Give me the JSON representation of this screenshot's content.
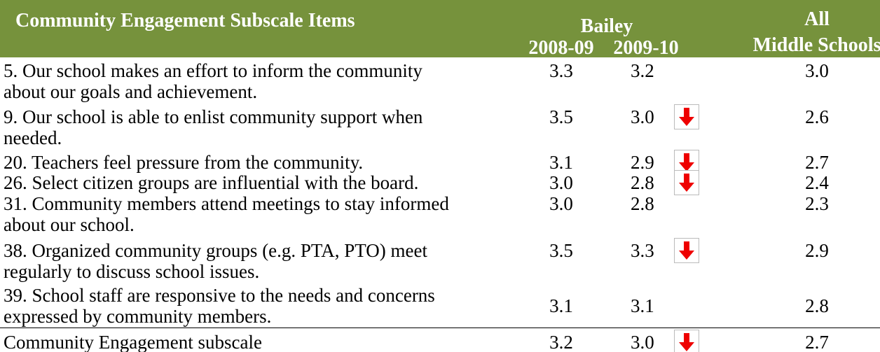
{
  "header": {
    "title": "Community Engagement Subscale Items",
    "school": "Bailey",
    "year1": "2008-09",
    "year2": "2009-10",
    "comparison": [
      "All",
      "Middle Schools"
    ]
  },
  "table": {
    "rows": [
      {
        "item": [
          "5. Our school makes an effort to inform the community",
          "about our goals and achievement."
        ],
        "y1": "3.3",
        "y2": "3.2",
        "all": "3.0",
        "decline": false
      },
      {
        "item": [
          "9. Our school is able to enlist community support when",
          "needed."
        ],
        "y1": "3.5",
        "y2": "3.0",
        "all": "2.6",
        "decline": true
      },
      {
        "item": [
          "20. Teachers feel pressure from the community."
        ],
        "y1": "3.1",
        "y2": "2.9",
        "all": "2.7",
        "decline": true
      },
      {
        "item": [
          "26. Select citizen groups are influential with the board."
        ],
        "y1": "3.0",
        "y2": "2.8",
        "all": "2.4",
        "decline": true
      },
      {
        "item": [
          "31. Community members attend meetings to stay informed",
          "about our school."
        ],
        "y1": "3.0",
        "y2": "2.8",
        "all": "2.3",
        "decline": false
      },
      {
        "item": [
          "38. Organized community groups (e.g. PTA, PTO) meet",
          "regularly to discuss school issues."
        ],
        "y1": "3.5",
        "y2": "3.3",
        "all": "2.9",
        "decline": true
      },
      {
        "item": [
          "39. School staff are responsive to the needs and concerns",
          "expressed by community members."
        ],
        "y1": "3.1",
        "y2": "3.1",
        "all": "2.8",
        "decline": false
      }
    ],
    "total": {
      "item": [
        "Community Engagement subscale"
      ],
      "y1": "3.2",
      "y2": "3.0",
      "all": "2.7",
      "decline": true
    }
  }
}
